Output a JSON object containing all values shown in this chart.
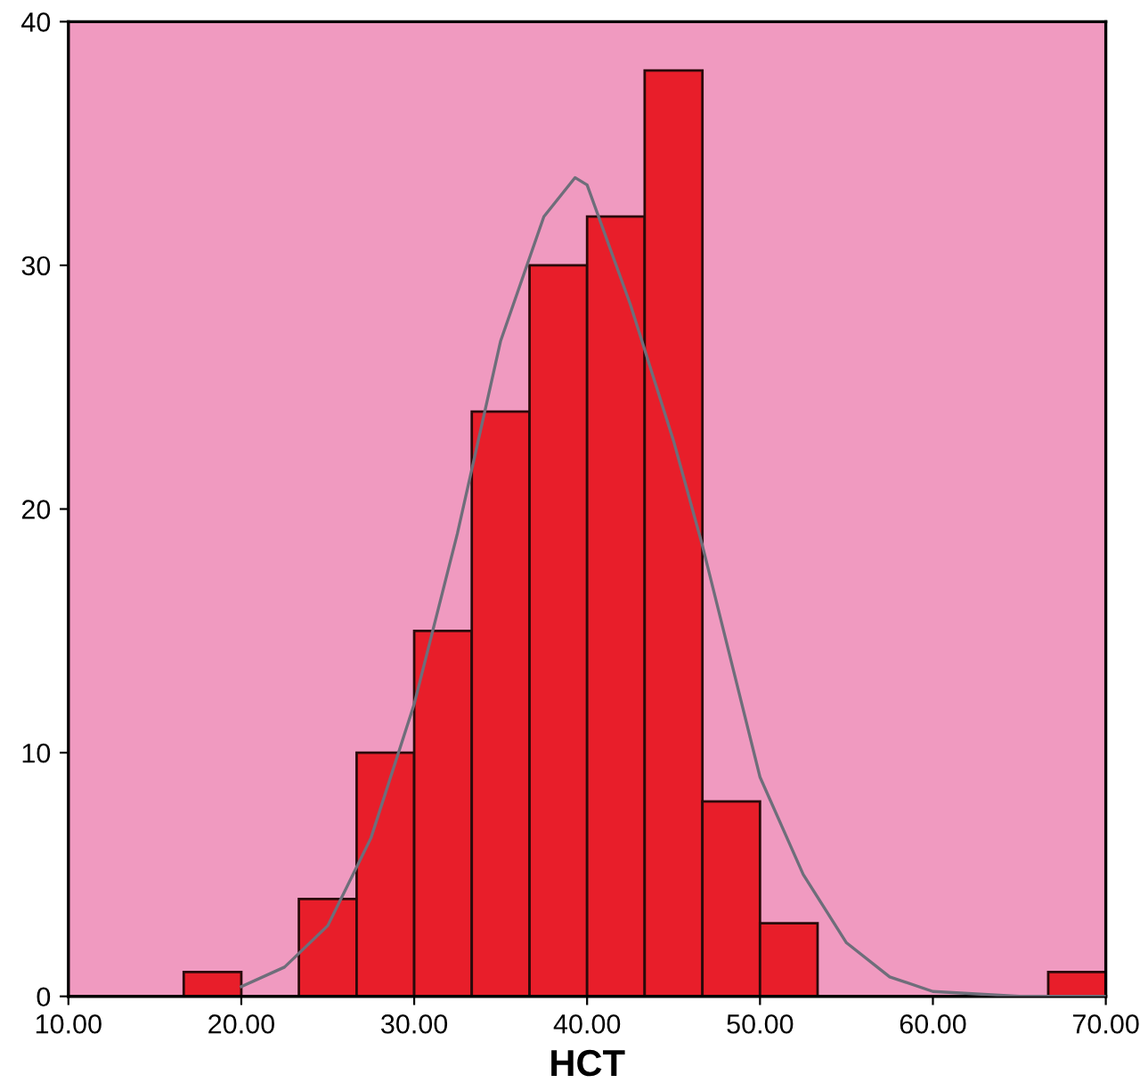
{
  "chart_data": {
    "type": "histogram",
    "xlabel": "HCT",
    "bins": [
      16.67,
      20,
      23.33,
      26.67,
      30,
      33.33,
      36.67,
      40,
      43.33,
      46.67,
      50,
      53.33,
      56.67,
      60,
      63.33,
      66.67,
      70
    ],
    "values": [
      1,
      0,
      4,
      10,
      15,
      24,
      30,
      32,
      38,
      8,
      3,
      0,
      0,
      0,
      0,
      1
    ],
    "color": "#e81e2a",
    "series": [
      {
        "type": "line",
        "color": "#6e6e7a",
        "x": [
          20,
          22.5,
          25,
          27.5,
          30,
          32.5,
          35,
          37.5,
          39.3,
          40,
          42.5,
          45,
          46.67,
          50,
          52.5,
          55,
          57.5,
          60,
          65,
          70
        ],
        "values": [
          0.4,
          1.2,
          2.9,
          6.5,
          12,
          19,
          26.9,
          32,
          33.6,
          33.3,
          28.4,
          22.8,
          18.5,
          9,
          5,
          2.2,
          0.8,
          0.2,
          0,
          0
        ]
      }
    ],
    "xlim": [
      10,
      70
    ],
    "ylim": [
      0,
      40
    ],
    "xticks": [
      {
        "value": 10,
        "label": "10.00"
      },
      {
        "value": 20,
        "label": "20.00"
      },
      {
        "value": 30,
        "label": "30.00"
      },
      {
        "value": 40,
        "label": "40.00"
      },
      {
        "value": 50,
        "label": "50.00"
      },
      {
        "value": 60,
        "label": "60.00"
      },
      {
        "value": 70,
        "label": "70.00"
      }
    ],
    "yticks": [
      0,
      10,
      20,
      30,
      40
    ]
  }
}
